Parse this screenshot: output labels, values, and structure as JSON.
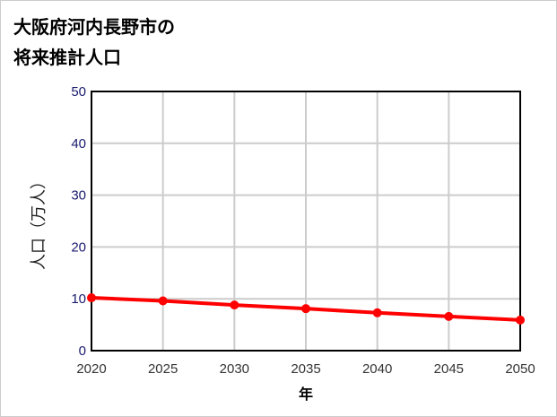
{
  "title_lines": [
    "大阪府河内長野市の",
    "将来推計人口"
  ],
  "chart_data": {
    "type": "line",
    "title": "大阪府河内長野市の将来推計人口",
    "xlabel": "年",
    "ylabel": "人口（万人）",
    "x": [
      2020,
      2025,
      2030,
      2035,
      2040,
      2045,
      2050
    ],
    "series": [
      {
        "name": "人口",
        "values": [
          10.2,
          9.6,
          8.8,
          8.1,
          7.3,
          6.6,
          5.9
        ],
        "color": "#ff0000"
      }
    ],
    "xlim": [
      2020,
      2050
    ],
    "ylim": [
      0,
      50
    ],
    "yticks": [
      0,
      10,
      20,
      30,
      40,
      50
    ],
    "xticks": [
      2020,
      2025,
      2030,
      2035,
      2040,
      2045,
      2050
    ],
    "grid": true
  }
}
